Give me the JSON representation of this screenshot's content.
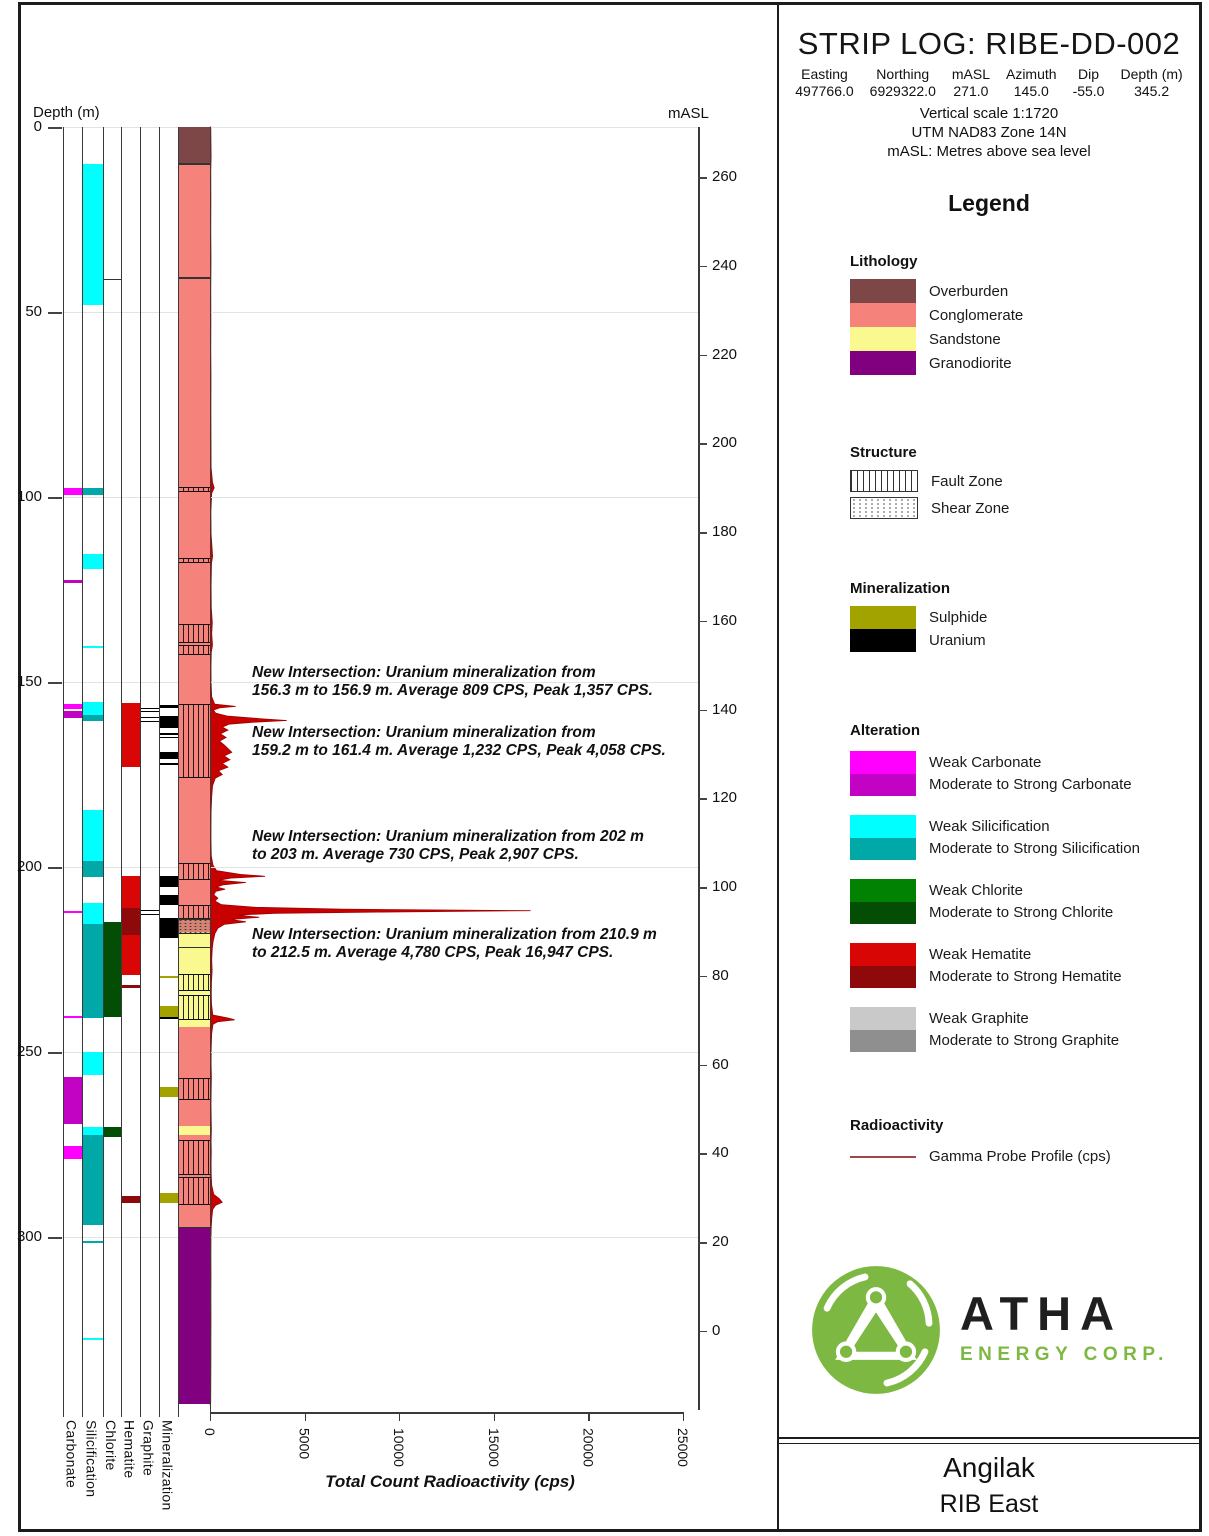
{
  "header": {
    "title": "STRIP LOG: RIBE-DD-002",
    "meta": [
      {
        "label": "Easting",
        "value": "497766.0"
      },
      {
        "label": "Northing",
        "value": "6929322.0"
      },
      {
        "label": "mASL",
        "value": "271.0"
      },
      {
        "label": "Azimuth",
        "value": "145.0"
      },
      {
        "label": "Dip",
        "value": "-55.0"
      },
      {
        "label": "Depth (m)",
        "value": "345.2"
      }
    ],
    "scale_lines": [
      "Vertical scale 1:1720",
      "UTM NAD83 Zone 14N",
      "mASL: Metres above sea level"
    ]
  },
  "legend": {
    "title": "Legend",
    "lithology": {
      "title": "Lithology",
      "items": [
        {
          "label": "Overburden",
          "color": "#7E4747"
        },
        {
          "label": "Conglomerate",
          "color": "#F5837C"
        },
        {
          "label": "Sandstone",
          "color": "#FAF98F"
        },
        {
          "label": "Granodiorite",
          "color": "#800080"
        }
      ]
    },
    "structure": {
      "title": "Structure",
      "items": [
        {
          "label": "Fault Zone",
          "pattern": "fault"
        },
        {
          "label": "Shear Zone",
          "pattern": "shear"
        }
      ]
    },
    "mineralization": {
      "title": "Mineralization",
      "items": [
        {
          "label": "Sulphide",
          "color": "#A3A300"
        },
        {
          "label": "Uranium",
          "color": "#000000"
        }
      ]
    },
    "alteration": {
      "title": "Alteration",
      "pairs": [
        {
          "weak": "Weak Carbonate",
          "strong": "Moderate to Strong Carbonate",
          "weak_color": "#FF00FF",
          "strong_color": "#C303C3"
        },
        {
          "weak": "Weak Silicification",
          "strong": "Moderate to Strong Silicification",
          "weak_color": "#00FFFF",
          "strong_color": "#00A8A8"
        },
        {
          "weak": "Weak Chlorite",
          "strong": "Moderate to Strong Chlorite",
          "weak_color": "#028202",
          "strong_color": "#044D04"
        },
        {
          "weak": "Weak Hematite",
          "strong": "Moderate to Strong Hematite",
          "weak_color": "#D90606",
          "strong_color": "#8E0A0A"
        },
        {
          "weak": "Weak Graphite",
          "strong": "Moderate to Strong Graphite",
          "weak_color": "#C9C9C9",
          "strong_color": "#8F8F8F"
        }
      ]
    },
    "radioactivity": {
      "title": "Radioactivity",
      "line_label": "Gamma Probe Profile (cps)",
      "line_color": "#A04848"
    }
  },
  "logo": {
    "brand": "ATHA",
    "sub": "ENERGY CORP.",
    "green": "#7DB842"
  },
  "footer": {
    "project": "Angilak",
    "area": "RIB East"
  },
  "axes": {
    "depth_label": "Depth (m)",
    "depth_ticks": [
      0,
      50,
      100,
      150,
      200,
      250,
      300
    ],
    "masl_label": "mASL",
    "masl_ticks": [
      260,
      240,
      220,
      200,
      180,
      160,
      140,
      120,
      100,
      80,
      60,
      40,
      20,
      0
    ],
    "gamma_label": "Total Count Radioactivity (cps)",
    "gamma_ticks": [
      0,
      5000,
      10000,
      15000,
      20000,
      25000
    ],
    "gamma_max": 25000
  },
  "columns": [
    {
      "id": "carbonate",
      "label": "Carbonate"
    },
    {
      "id": "silicification",
      "label": "Silicification"
    },
    {
      "id": "chlorite",
      "label": "Chlorite"
    },
    {
      "id": "hematite",
      "label": "Hematite"
    },
    {
      "id": "graphite",
      "label": "Graphite"
    },
    {
      "id": "mineralization",
      "label": "Mineralization"
    }
  ],
  "annotations": [
    {
      "line1": "New Intersection: Uranium mineralization from",
      "line2": "156.3 m to 156.9 m. Average 809 CPS, Peak 1,357 CPS."
    },
    {
      "line1": "New Intersection: Uranium mineralization from",
      "line2": "159.2 m to 161.4 m. Average 1,232 CPS, Peak 4,058 CPS."
    },
    {
      "line1": "New Intersection: Uranium mineralization from 202 m",
      "line2": "to 203 m. Average 730 CPS, Peak 2,907 CPS."
    },
    {
      "line1": "New Intersection: Uranium mineralization from 210.9 m",
      "line2": "to 212.5 m. Average 4,780 CPS, Peak 16,947 CPS."
    }
  ],
  "chart_data": {
    "type": "strip-log",
    "depth_unit": "m",
    "depth_range": [
      0,
      345.2
    ],
    "lithology": [
      [
        0,
        9.8,
        "overburden"
      ],
      [
        9.8,
        217.6,
        "conglomerate"
      ],
      [
        217.6,
        243.2,
        "sandstone"
      ],
      [
        243.2,
        270.0,
        "conglomerate"
      ],
      [
        270.0,
        272.5,
        "sandstone"
      ],
      [
        272.5,
        297.2,
        "conglomerate"
      ],
      [
        297.2,
        345.2,
        "granodiorite"
      ]
    ],
    "structure": [
      [
        97.3,
        98.1,
        "fault"
      ],
      [
        116.4,
        117.2,
        "fault"
      ],
      [
        134.3,
        139.0,
        "fault"
      ],
      [
        140.0,
        142.2,
        "fault"
      ],
      [
        155.9,
        175.5,
        "fault"
      ],
      [
        199.0,
        203.1,
        "fault"
      ],
      [
        210.3,
        213.8,
        "fault"
      ],
      [
        213.8,
        217.6,
        "shear"
      ],
      [
        228.9,
        233.1,
        "fault"
      ],
      [
        234.6,
        240.8,
        "fault"
      ],
      [
        257.0,
        262.4,
        "fault"
      ],
      [
        273.8,
        282.7,
        "fault"
      ],
      [
        283.8,
        290.8,
        "fault"
      ]
    ],
    "alteration": {
      "carbonate": [
        [
          97.5,
          99.5,
          "weak"
        ],
        [
          122.5,
          123.3,
          "strong"
        ],
        [
          155.9,
          157.3,
          "weak"
        ],
        [
          157.8,
          159.6,
          "strong"
        ],
        [
          211.8,
          212.4,
          "weak"
        ],
        [
          240.3,
          240.9,
          "weak"
        ],
        [
          256.8,
          269.5,
          "strong"
        ],
        [
          275.4,
          279.0,
          "weak"
        ]
      ],
      "silicification": [
        [
          10,
          48,
          "weak"
        ],
        [
          97.5,
          99.5,
          "strong"
        ],
        [
          115.5,
          119.5,
          "weak"
        ],
        [
          140.2,
          140.7,
          "weak"
        ],
        [
          155.5,
          158.8,
          "weak"
        ],
        [
          158.8,
          160.6,
          "strong"
        ],
        [
          184.5,
          198.5,
          "weak"
        ],
        [
          198.5,
          202.6,
          "strong"
        ],
        [
          209.8,
          215.5,
          "weak"
        ],
        [
          215.5,
          240.8,
          "strong"
        ],
        [
          249.9,
          256.1,
          "weak"
        ],
        [
          270.3,
          272.3,
          "weak"
        ],
        [
          272.3,
          296.8,
          "strong"
        ],
        [
          301.0,
          301.7,
          "strong"
        ],
        [
          327.4,
          327.9,
          "weak"
        ]
      ],
      "chlorite": [
        [
          214.8,
          240.5,
          "strong"
        ],
        [
          270.3,
          273.1,
          "strong"
        ]
      ],
      "hematite": [
        [
          155.8,
          172.9,
          "weak"
        ],
        [
          202.3,
          211.0,
          "weak"
        ],
        [
          211.0,
          218.4,
          "strong"
        ],
        [
          218.4,
          229.2,
          "weak"
        ],
        [
          231.8,
          232.6,
          "strong"
        ],
        [
          288.9,
          290.9,
          "strong"
        ]
      ],
      "graphite": [
        [
          156.9,
          157.6,
          "outline"
        ],
        [
          159.4,
          160.4,
          "outline"
        ],
        [
          211.5,
          212.3,
          "outline"
        ]
      ]
    },
    "mineralization_intervals": [
      [
        156.2,
        157.0,
        "uranium"
      ],
      [
        159.3,
        162.3,
        "uranium"
      ],
      [
        163.8,
        164.2,
        "uranium"
      ],
      [
        164.8,
        165.2,
        "uranium"
      ],
      [
        168.9,
        170.7,
        "uranium"
      ],
      [
        172.0,
        172.5,
        "uranium"
      ],
      [
        202.5,
        205.4,
        "uranium"
      ],
      [
        207.6,
        210.4,
        "uranium"
      ],
      [
        213.7,
        219.1,
        "uranium"
      ],
      [
        229.5,
        230.0,
        "sulphide"
      ],
      [
        237.7,
        240.5,
        "sulphide"
      ],
      [
        240.6,
        241.0,
        "uranium"
      ],
      [
        259.4,
        262.1,
        "sulphide"
      ],
      [
        288.0,
        290.7,
        "sulphide"
      ]
    ],
    "contact_lines": [
      {
        "col": "chlorite",
        "depth": 41.0
      },
      {
        "col": "lithology",
        "depth": 9.8
      },
      {
        "col": "lithology",
        "depth": 40.6
      },
      {
        "col": "lithology",
        "depth": 221.6
      },
      {
        "col": "lithology",
        "depth": 297.2
      }
    ],
    "gamma_profile": {
      "units": "cps",
      "points": [
        [
          0,
          40
        ],
        [
          8,
          60
        ],
        [
          12,
          40
        ],
        [
          20,
          50
        ],
        [
          28,
          40
        ],
        [
          36,
          55
        ],
        [
          44,
          40
        ],
        [
          52,
          50
        ],
        [
          60,
          40
        ],
        [
          68,
          55
        ],
        [
          76,
          45
        ],
        [
          84,
          55
        ],
        [
          92,
          60
        ],
        [
          96,
          130
        ],
        [
          97.5,
          220
        ],
        [
          99,
          90
        ],
        [
          104,
          50
        ],
        [
          110,
          60
        ],
        [
          116,
          140
        ],
        [
          118,
          80
        ],
        [
          124,
          60
        ],
        [
          130,
          70
        ],
        [
          134,
          120
        ],
        [
          137,
          90
        ],
        [
          140,
          130
        ],
        [
          142,
          70
        ],
        [
          146,
          55
        ],
        [
          150,
          60
        ],
        [
          154,
          90
        ],
        [
          156,
          250
        ],
        [
          156.6,
          1357
        ],
        [
          157,
          500
        ],
        [
          157.6,
          180
        ],
        [
          158.4,
          300
        ],
        [
          159.2,
          900
        ],
        [
          159.9,
          2600
        ],
        [
          160.4,
          4058
        ],
        [
          160.9,
          2200
        ],
        [
          161.4,
          1000
        ],
        [
          162.2,
          650
        ],
        [
          163,
          950
        ],
        [
          164,
          550
        ],
        [
          165,
          850
        ],
        [
          166,
          500
        ],
        [
          167,
          750
        ],
        [
          168,
          950
        ],
        [
          169,
          1150
        ],
        [
          170,
          750
        ],
        [
          171,
          1050
        ],
        [
          172,
          650
        ],
        [
          173,
          950
        ],
        [
          174,
          450
        ],
        [
          175,
          650
        ],
        [
          176,
          280
        ],
        [
          178,
          140
        ],
        [
          181,
          90
        ],
        [
          185,
          60
        ],
        [
          189,
          55
        ],
        [
          193,
          55
        ],
        [
          197,
          70
        ],
        [
          199.5,
          160
        ],
        [
          201,
          350
        ],
        [
          202,
          1600
        ],
        [
          202.5,
          2907
        ],
        [
          203,
          1100
        ],
        [
          203.6,
          450
        ],
        [
          204.2,
          1900
        ],
        [
          204.8,
          700
        ],
        [
          205.4,
          350
        ],
        [
          206,
          800
        ],
        [
          206.6,
          300
        ],
        [
          207.5,
          200
        ],
        [
          208.4,
          420
        ],
        [
          209.2,
          260
        ],
        [
          210.2,
          600
        ],
        [
          210.9,
          2400
        ],
        [
          211.4,
          7000
        ],
        [
          211.8,
          16947
        ],
        [
          212.2,
          8800
        ],
        [
          212.5,
          3400
        ],
        [
          213,
          1500
        ],
        [
          213.6,
          2600
        ],
        [
          214.2,
          1100
        ],
        [
          214.8,
          1900
        ],
        [
          215.5,
          750
        ],
        [
          216.5,
          420
        ],
        [
          218,
          260
        ],
        [
          220,
          170
        ],
        [
          222,
          120
        ],
        [
          225,
          90
        ],
        [
          228,
          110
        ],
        [
          231,
          80
        ],
        [
          234,
          70
        ],
        [
          237,
          80
        ],
        [
          240,
          150
        ],
        [
          240.8,
          950
        ],
        [
          241.3,
          1300
        ],
        [
          241.8,
          420
        ],
        [
          242.5,
          160
        ],
        [
          245,
          90
        ],
        [
          249,
          65
        ],
        [
          253,
          60
        ],
        [
          257,
          75
        ],
        [
          260,
          65
        ],
        [
          264,
          55
        ],
        [
          268,
          65
        ],
        [
          271,
          75
        ],
        [
          274,
          60
        ],
        [
          277,
          70
        ],
        [
          280,
          60
        ],
        [
          283,
          65
        ],
        [
          286,
          90
        ],
        [
          288.5,
          200
        ],
        [
          289.6,
          480
        ],
        [
          290.6,
          650
        ],
        [
          291.4,
          300
        ],
        [
          292.5,
          150
        ],
        [
          294.5,
          100
        ],
        [
          297,
          70
        ],
        [
          300,
          55
        ],
        [
          305,
          50
        ],
        [
          310,
          55
        ],
        [
          316,
          48
        ],
        [
          322,
          52
        ],
        [
          328,
          48
        ],
        [
          334,
          50
        ],
        [
          340,
          42
        ],
        [
          345,
          36
        ]
      ]
    }
  }
}
